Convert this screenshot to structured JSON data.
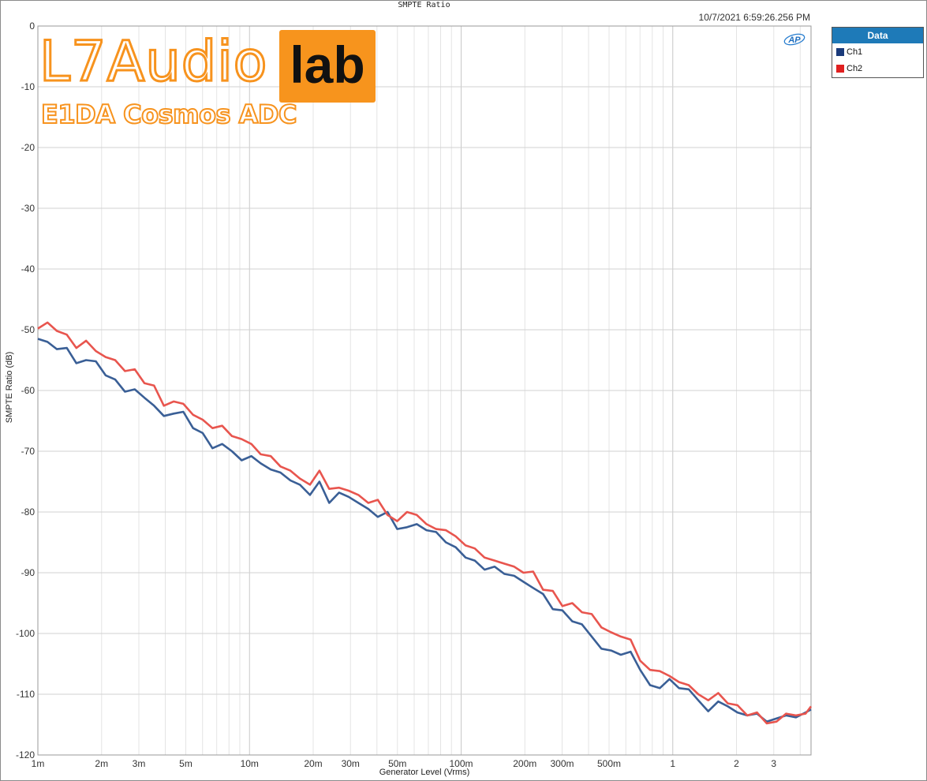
{
  "header": {
    "title": "SMPTE Ratio",
    "timestamp": "10/7/2021 6:59:26.256 PM",
    "logo_text": "AP"
  },
  "legend": {
    "title": "Data",
    "items": [
      {
        "label": "Ch1",
        "color": "#1a3a7a"
      },
      {
        "label": "Ch2",
        "color": "#e02020"
      }
    ]
  },
  "watermark": {
    "brand": "L7Audio",
    "brand_box": "lab",
    "subtitle": "E1DA Cosmos ADC"
  },
  "chart_data": {
    "type": "line",
    "title": "SMPTE Ratio",
    "xlabel": "Generator Level (Vrms)",
    "ylabel": "SMPTE Ratio (dB)",
    "x_scale": "log",
    "xlim": [
      0.001,
      4.5
    ],
    "ylim": [
      -120,
      0
    ],
    "grid": true,
    "legend_position": "right",
    "x_tick_labels": [
      {
        "v": 0.001,
        "t": "1m"
      },
      {
        "v": 0.002,
        "t": "2m"
      },
      {
        "v": 0.003,
        "t": "3m"
      },
      {
        "v": 0.005,
        "t": "5m"
      },
      {
        "v": 0.01,
        "t": "10m"
      },
      {
        "v": 0.02,
        "t": "20m"
      },
      {
        "v": 0.03,
        "t": "30m"
      },
      {
        "v": 0.05,
        "t": "50m"
      },
      {
        "v": 0.1,
        "t": "100m"
      },
      {
        "v": 0.2,
        "t": "200m"
      },
      {
        "v": 0.3,
        "t": "300m"
      },
      {
        "v": 0.5,
        "t": "500m"
      },
      {
        "v": 1,
        "t": "1"
      },
      {
        "v": 2,
        "t": "2"
      },
      {
        "v": 3,
        "t": "3"
      }
    ],
    "y_ticks": [
      0,
      -10,
      -20,
      -30,
      -40,
      -50,
      -60,
      -70,
      -80,
      -90,
      -100,
      -110,
      -120
    ],
    "series": [
      {
        "name": "Ch1",
        "color": "#3a5f96",
        "x": [
          0.001,
          0.00111,
          0.00123,
          0.00137,
          0.00152,
          0.00169,
          0.00188,
          0.00209,
          0.00232,
          0.00258,
          0.00287,
          0.00319,
          0.00354,
          0.00394,
          0.00438,
          0.00487,
          0.00541,
          0.00601,
          0.00668,
          0.00743,
          0.00826,
          0.00918,
          0.0102,
          0.0113,
          0.0126,
          0.014,
          0.0156,
          0.0173,
          0.0193,
          0.0214,
          0.0238,
          0.0265,
          0.0294,
          0.0327,
          0.0364,
          0.0404,
          0.0449,
          0.0499,
          0.0555,
          0.0617,
          0.0686,
          0.0762,
          0.0847,
          0.0942,
          0.105,
          0.116,
          0.129,
          0.144,
          0.16,
          0.178,
          0.197,
          0.219,
          0.244,
          0.271,
          0.301,
          0.335,
          0.372,
          0.414,
          0.46,
          0.511,
          0.568,
          0.632,
          0.702,
          0.781,
          0.868,
          0.965,
          1.07,
          1.19,
          1.32,
          1.47,
          1.64,
          1.82,
          2.02,
          2.25,
          2.5,
          2.78,
          3.09,
          3.43,
          3.82,
          4.24,
          4.5
        ],
        "y": [
          -51.5,
          -52.0,
          -53.2,
          -53.0,
          -55.5,
          -55.0,
          -55.2,
          -57.5,
          -58.2,
          -60.2,
          -59.8,
          -61.2,
          -62.5,
          -64.2,
          -63.8,
          -63.5,
          -66.2,
          -67.0,
          -69.5,
          -68.8,
          -70.0,
          -71.5,
          -70.8,
          -72.0,
          -73.0,
          -73.5,
          -74.8,
          -75.5,
          -77.2,
          -75.0,
          -78.5,
          -76.8,
          -77.5,
          -78.5,
          -79.5,
          -80.8,
          -80.0,
          -82.8,
          -82.5,
          -82.0,
          -83.0,
          -83.3,
          -85.0,
          -85.8,
          -87.5,
          -88.0,
          -89.5,
          -89.0,
          -90.2,
          -90.5,
          -91.5,
          -92.5,
          -93.5,
          -96.0,
          -96.2,
          -98.0,
          -98.5,
          -100.5,
          -102.5,
          -102.8,
          -103.5,
          -103.0,
          -106.0,
          -108.5,
          -109.0,
          -107.5,
          -109.0,
          -109.2,
          -111.0,
          -112.8,
          -111.2,
          -112.0,
          -113.0,
          -113.5,
          -113.2,
          -114.5,
          -114.0,
          -113.5,
          -113.8,
          -113.0,
          -112.5
        ]
      },
      {
        "name": "Ch2",
        "color": "#e8554e",
        "x": [
          0.001,
          0.00111,
          0.00123,
          0.00137,
          0.00152,
          0.00169,
          0.00188,
          0.00209,
          0.00232,
          0.00258,
          0.00287,
          0.00319,
          0.00354,
          0.00394,
          0.00438,
          0.00487,
          0.00541,
          0.00601,
          0.00668,
          0.00743,
          0.00826,
          0.00918,
          0.0102,
          0.0113,
          0.0126,
          0.014,
          0.0156,
          0.0173,
          0.0193,
          0.0214,
          0.0238,
          0.0265,
          0.0294,
          0.0327,
          0.0364,
          0.0404,
          0.0449,
          0.0499,
          0.0555,
          0.0617,
          0.0686,
          0.0762,
          0.0847,
          0.0942,
          0.105,
          0.116,
          0.129,
          0.144,
          0.16,
          0.178,
          0.197,
          0.219,
          0.244,
          0.271,
          0.301,
          0.335,
          0.372,
          0.414,
          0.46,
          0.511,
          0.568,
          0.632,
          0.702,
          0.781,
          0.868,
          0.965,
          1.07,
          1.19,
          1.32,
          1.47,
          1.64,
          1.82,
          2.02,
          2.25,
          2.5,
          2.78,
          3.09,
          3.43,
          3.82,
          4.24,
          4.5
        ],
        "y": [
          -49.8,
          -48.8,
          -50.2,
          -50.8,
          -53.0,
          -51.8,
          -53.5,
          -54.5,
          -55.0,
          -56.8,
          -56.5,
          -58.8,
          -59.2,
          -62.5,
          -61.8,
          -62.2,
          -64.0,
          -64.8,
          -66.2,
          -65.8,
          -67.5,
          -68.0,
          -68.8,
          -70.5,
          -70.8,
          -72.5,
          -73.2,
          -74.5,
          -75.5,
          -73.2,
          -76.2,
          -76.0,
          -76.5,
          -77.2,
          -78.5,
          -78.0,
          -80.5,
          -81.5,
          -80.0,
          -80.5,
          -82.0,
          -82.8,
          -83.0,
          -84.0,
          -85.5,
          -86.0,
          -87.5,
          -88.0,
          -88.5,
          -89.0,
          -90.0,
          -89.8,
          -92.8,
          -93.0,
          -95.5,
          -95.0,
          -96.5,
          -96.8,
          -99.0,
          -99.8,
          -100.5,
          -101.0,
          -104.5,
          -106.0,
          -106.2,
          -107.0,
          -108.0,
          -108.5,
          -110.0,
          -111.0,
          -109.8,
          -111.5,
          -111.8,
          -113.5,
          -113.0,
          -114.8,
          -114.5,
          -113.2,
          -113.5,
          -113.2,
          -112.0
        ]
      }
    ]
  }
}
